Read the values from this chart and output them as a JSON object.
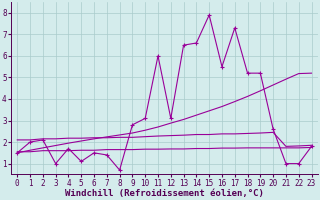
{
  "xlabel": "Windchill (Refroidissement éolien,°C)",
  "x": [
    0,
    1,
    2,
    3,
    4,
    5,
    6,
    7,
    8,
    9,
    10,
    11,
    12,
    13,
    14,
    15,
    16,
    17,
    18,
    19,
    20,
    21,
    22,
    23
  ],
  "y_main": [
    1.5,
    2.0,
    2.1,
    1.0,
    1.7,
    1.1,
    1.5,
    1.4,
    0.7,
    2.8,
    3.1,
    6.0,
    3.1,
    6.5,
    6.6,
    7.9,
    5.5,
    7.3,
    5.2,
    5.2,
    2.6,
    1.0,
    1.0,
    1.8
  ],
  "y_trend": [
    1.5,
    1.62,
    1.73,
    1.84,
    1.95,
    2.05,
    2.15,
    2.24,
    2.33,
    2.42,
    2.55,
    2.7,
    2.88,
    3.05,
    3.25,
    3.45,
    3.65,
    3.88,
    4.12,
    4.38,
    4.65,
    4.92,
    5.18,
    5.2
  ],
  "y_flat1": [
    2.1,
    2.1,
    2.15,
    2.15,
    2.18,
    2.18,
    2.2,
    2.2,
    2.22,
    2.22,
    2.25,
    2.28,
    2.3,
    2.32,
    2.35,
    2.35,
    2.38,
    2.38,
    2.4,
    2.42,
    2.45,
    1.8,
    1.82,
    1.85
  ],
  "y_flat2": [
    1.55,
    1.55,
    1.6,
    1.6,
    1.6,
    1.62,
    1.62,
    1.65,
    1.65,
    1.65,
    1.67,
    1.67,
    1.68,
    1.68,
    1.7,
    1.7,
    1.72,
    1.72,
    1.73,
    1.73,
    1.73,
    1.73,
    1.73,
    1.75
  ],
  "line_color": "#990099",
  "bg_color": "#d4ecec",
  "grid_color": "#aacccc",
  "ylim": [
    0.5,
    8.5
  ],
  "xlim": [
    -0.5,
    23.5
  ],
  "yticks": [
    1,
    2,
    3,
    4,
    5,
    6,
    7,
    8
  ],
  "xticks": [
    0,
    1,
    2,
    3,
    4,
    5,
    6,
    7,
    8,
    9,
    10,
    11,
    12,
    13,
    14,
    15,
    16,
    17,
    18,
    19,
    20,
    21,
    22,
    23
  ],
  "tick_fontsize": 5.5,
  "xlabel_fontsize": 6.5
}
